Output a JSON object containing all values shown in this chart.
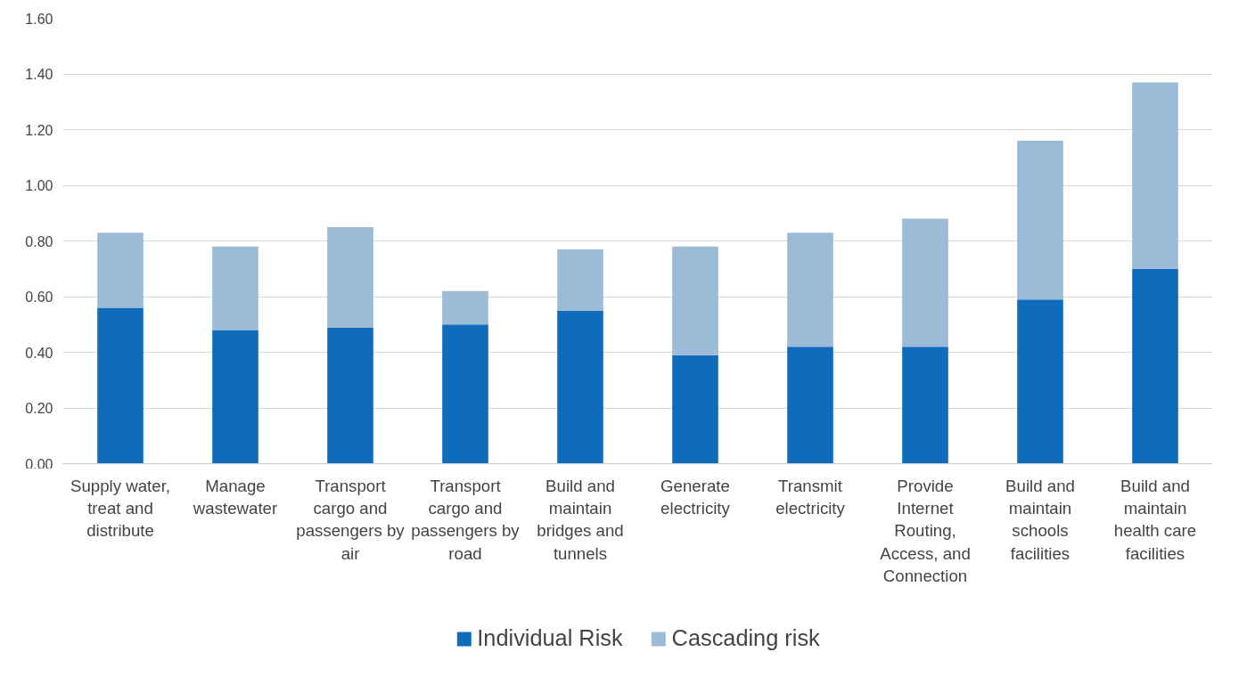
{
  "chart_data": {
    "type": "bar",
    "stacked": true,
    "categories": [
      "Supply water, treat and distribute",
      "Manage wastewater",
      "Transport cargo and passengers by air",
      "Transport cargo and passengers by road",
      "Build and maintain bridges and tunnels",
      "Generate electricity",
      "Transmit electricity",
      "Provide Internet Routing, Access, and Connection",
      "Build and maintain schools facilities",
      "Build and maintain health care facilities"
    ],
    "series": [
      {
        "name": "Individual Risk",
        "color": "#0f6cbd",
        "values": [
          0.56,
          0.48,
          0.49,
          0.5,
          0.55,
          0.39,
          0.42,
          0.42,
          0.59,
          0.7
        ]
      },
      {
        "name": "Cascading risk",
        "color": "#9bbbd7",
        "values": [
          0.27,
          0.3,
          0.36,
          0.12,
          0.22,
          0.39,
          0.41,
          0.46,
          0.57,
          0.67
        ]
      }
    ],
    "ylim": [
      0,
      1.6
    ],
    "yticks": [
      {
        "value": 0,
        "label": "0.00"
      },
      {
        "value": 0.2,
        "label": "0.20"
      },
      {
        "value": 0.4,
        "label": "0.40"
      },
      {
        "value": 0.6,
        "label": "0.60"
      },
      {
        "value": 0.8,
        "label": "0.80"
      },
      {
        "value": 1.0,
        "label": "1.00"
      },
      {
        "value": 1.2,
        "label": "1.20"
      },
      {
        "value": 1.4,
        "label": "1.40"
      },
      {
        "value": 1.6,
        "label": "1.60"
      }
    ],
    "grid": "y",
    "legend": "bottom"
  }
}
